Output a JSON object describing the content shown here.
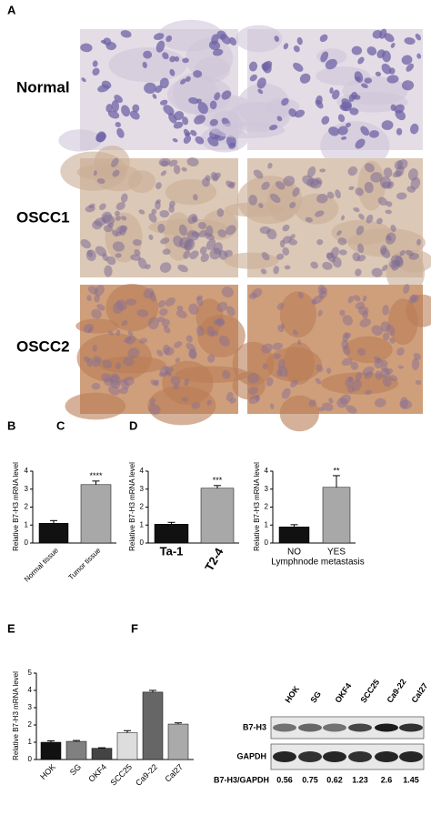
{
  "panels": [
    "A",
    "B",
    "C",
    "D",
    "E",
    "F"
  ],
  "histology": {
    "rows": [
      "Normal",
      "OSCC1",
      "OSCC2"
    ]
  },
  "chart_data": [
    {
      "type": "bar",
      "ylabel": "Relative B7-H3 mRNA level",
      "categories": [
        "Normal tissue",
        "Tumor tissue"
      ],
      "values": [
        1.1,
        3.25
      ],
      "errors": [
        0.15,
        0.2
      ],
      "colors": [
        "#111111",
        "#a8a8a8"
      ],
      "ylim": [
        0,
        4
      ],
      "yticks": [
        0,
        1,
        2,
        3,
        4
      ],
      "significance": "****"
    },
    {
      "type": "bar",
      "ylabel": "Relative B7-H3 mRNA level",
      "categories": [
        "Ta-1",
        "T2-4"
      ],
      "values": [
        1.05,
        3.05
      ],
      "errors": [
        0.1,
        0.15
      ],
      "colors": [
        "#111111",
        "#a8a8a8"
      ],
      "ylim": [
        0,
        4
      ],
      "yticks": [
        0,
        1,
        2,
        3,
        4
      ],
      "significance": "***"
    },
    {
      "type": "bar",
      "ylabel": "Relative B7-H3 mRNA level",
      "categories": [
        "NO",
        "YES"
      ],
      "xlabel": "Lymphnode metastasis",
      "values": [
        0.9,
        3.1
      ],
      "errors": [
        0.12,
        0.65
      ],
      "colors": [
        "#111111",
        "#a8a8a8"
      ],
      "ylim": [
        0,
        4
      ],
      "yticks": [
        0,
        1,
        2,
        3,
        4
      ],
      "significance": "**"
    },
    {
      "type": "bar",
      "ylabel": "Relative B7-H3 mRNA level",
      "categories": [
        "HOK",
        "SG",
        "OKF4",
        "SCC25",
        "Ca9-22",
        "Cal27"
      ],
      "values": [
        1.0,
        1.05,
        0.65,
        1.55,
        3.9,
        2.05
      ],
      "errors": [
        0.08,
        0.05,
        0.03,
        0.12,
        0.1,
        0.07
      ],
      "colors": [
        "#111111",
        "#808080",
        "#444444",
        "#dddddd",
        "#666666",
        "#aaaaaa"
      ],
      "ylim": [
        0,
        5
      ],
      "yticks": [
        0,
        1,
        2,
        3,
        4,
        5
      ]
    }
  ],
  "blot": {
    "lanes": [
      "HOK",
      "SG",
      "OKF4",
      "SCC25",
      "Ca9-22",
      "Cal27"
    ],
    "rows": [
      "B7-H3",
      "GAPDH"
    ],
    "ratio_label": "B7-H3/GAPDH",
    "ratios": [
      0.56,
      0.75,
      0.62,
      1.23,
      2.6,
      1.45
    ]
  }
}
